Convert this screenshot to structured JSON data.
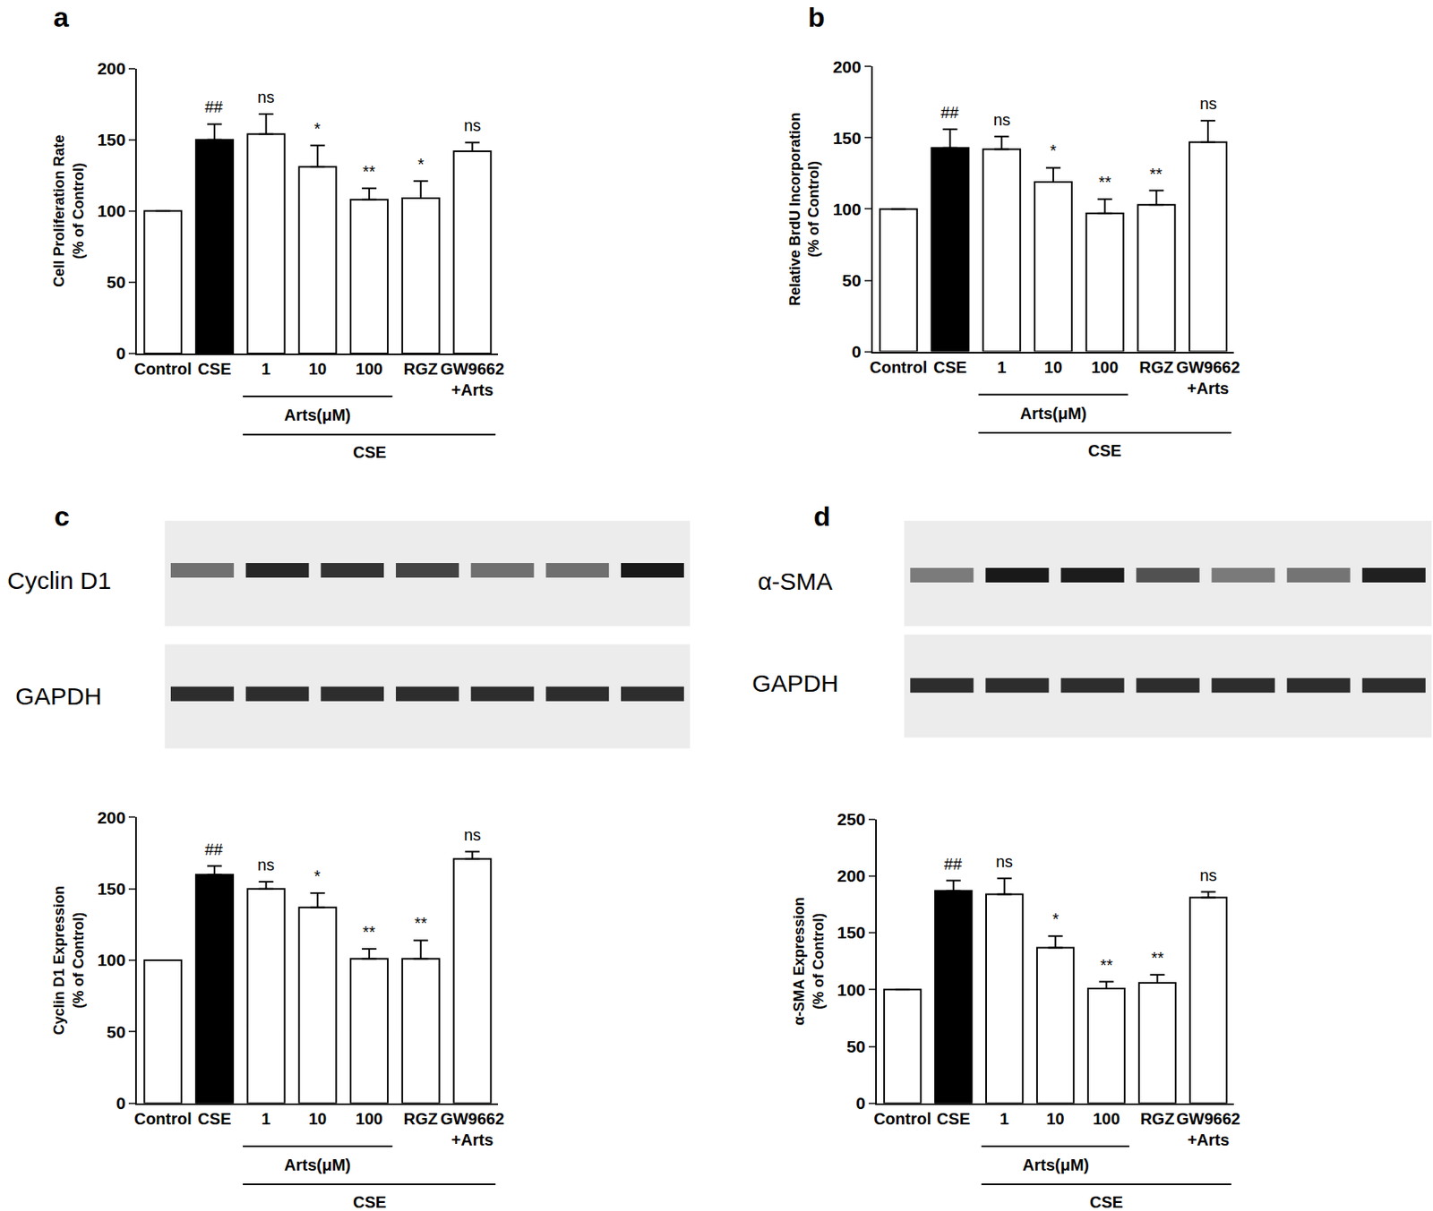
{
  "chart_data": [
    {
      "type": "bar",
      "panel": "a",
      "categories": [
        "Control",
        "CSE",
        "1",
        "10",
        "100",
        "RGZ",
        "GW9662\n+Arts"
      ],
      "values": [
        100,
        150,
        154,
        131,
        108,
        109,
        142
      ],
      "errors": [
        0,
        11,
        14,
        15,
        8,
        12,
        6
      ],
      "significance": [
        null,
        "##",
        "ns",
        "*",
        "**",
        "*",
        "ns"
      ],
      "colors": [
        "#ffffff",
        "#000000",
        "#ffffff",
        "#ffffff",
        "#ffffff",
        "#ffffff",
        "#ffffff"
      ],
      "y_label": "Cell Proliferation Rate\n(% of Control)",
      "ylim": [
        0,
        200
      ],
      "yticks": [
        0,
        50,
        100,
        150,
        200
      ],
      "groups": [
        {
          "label": "Arts(μM)",
          "from": 2,
          "to": 4
        },
        {
          "label": "CSE",
          "from": 2,
          "to": 6
        }
      ]
    },
    {
      "type": "bar",
      "panel": "b",
      "categories": [
        "Control",
        "CSE",
        "1",
        "10",
        "100",
        "RGZ",
        "GW9662\n+Arts"
      ],
      "values": [
        100,
        143,
        142,
        119,
        97,
        103,
        147
      ],
      "errors": [
        0,
        13,
        9,
        10,
        10,
        10,
        15
      ],
      "significance": [
        null,
        "##",
        "ns",
        "*",
        "**",
        "**",
        "ns"
      ],
      "colors": [
        "#ffffff",
        "#000000",
        "#ffffff",
        "#ffffff",
        "#ffffff",
        "#ffffff",
        "#ffffff"
      ],
      "y_label": "Relative BrdU Incorporation\n(% of Control)",
      "ylim": [
        0,
        200
      ],
      "yticks": [
        0,
        50,
        100,
        150,
        200
      ],
      "groups": [
        {
          "label": "Arts(μM)",
          "from": 2,
          "to": 4
        },
        {
          "label": "CSE",
          "from": 2,
          "to": 6
        }
      ]
    },
    {
      "type": "bar",
      "panel": "c",
      "categories": [
        "Control",
        "CSE",
        "1",
        "10",
        "100",
        "RGZ",
        "GW9662\n+Arts"
      ],
      "values": [
        100,
        160,
        150,
        137,
        101,
        101,
        171
      ],
      "errors": [
        0,
        6,
        5,
        10,
        7,
        13,
        5
      ],
      "significance": [
        null,
        "##",
        "ns",
        "*",
        "**",
        "**",
        "ns"
      ],
      "colors": [
        "#ffffff",
        "#000000",
        "#ffffff",
        "#ffffff",
        "#ffffff",
        "#ffffff",
        "#ffffff"
      ],
      "y_label": "Cyclin D1 Expression\n(% of Control)",
      "ylim": [
        0,
        200
      ],
      "yticks": [
        0,
        50,
        100,
        150,
        200
      ],
      "groups": [
        {
          "label": "Arts(μM)",
          "from": 2,
          "to": 4
        },
        {
          "label": "CSE",
          "from": 2,
          "to": 6
        }
      ],
      "blots": [
        "Cyclin D1",
        "GAPDH"
      ]
    },
    {
      "type": "bar",
      "panel": "d",
      "categories": [
        "Control",
        "CSE",
        "1",
        "10",
        "100",
        "RGZ",
        "GW9662\n+Arts"
      ],
      "values": [
        100,
        187,
        184,
        137,
        101,
        106,
        181
      ],
      "errors": [
        0,
        9,
        14,
        10,
        6,
        7,
        5
      ],
      "significance": [
        null,
        "##",
        "ns",
        "*",
        "**",
        "**",
        "ns"
      ],
      "colors": [
        "#ffffff",
        "#000000",
        "#ffffff",
        "#ffffff",
        "#ffffff",
        "#ffffff",
        "#ffffff"
      ],
      "y_label": "α-SMA Expression\n(% of Control)",
      "ylim": [
        0,
        250
      ],
      "yticks": [
        0,
        50,
        100,
        150,
        200,
        250
      ],
      "groups": [
        {
          "label": "Arts(μM)",
          "from": 2,
          "to": 4
        },
        {
          "label": "CSE",
          "from": 2,
          "to": 6
        }
      ],
      "blots": [
        "α-SMA",
        "GAPDH"
      ]
    }
  ]
}
